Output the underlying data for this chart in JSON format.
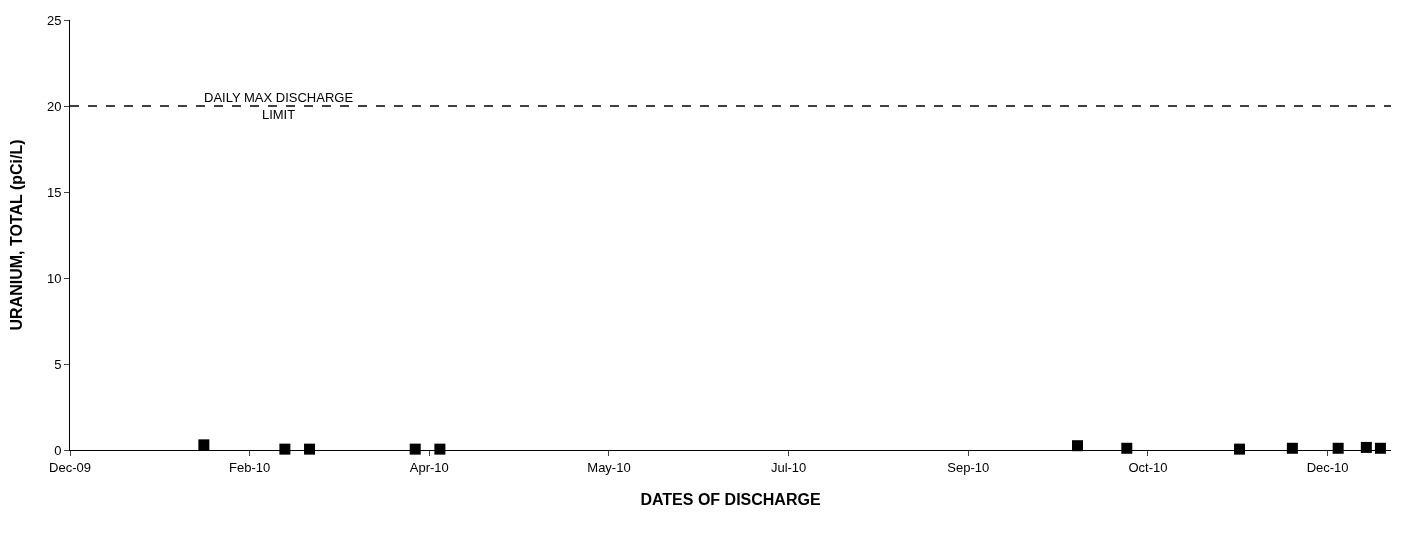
{
  "chart_data": {
    "type": "scatter",
    "xlabel": "DATES OF DISCHARGE",
    "ylabel": "URANIUM, TOTAL (pCi/L)",
    "x": [
      "2010-02-01",
      "2010-02-24",
      "2010-03-03",
      "2010-04-02",
      "2010-04-09",
      "2010-10-07",
      "2010-10-21",
      "2010-11-22",
      "2010-12-07",
      "2010-12-20",
      "2010-12-28",
      "2011-01-01"
    ],
    "series": [
      {
        "color": "#000000",
        "values": [
          0.3,
          0.05,
          0.05,
          0.05,
          0.05,
          0.25,
          0.1,
          0.05,
          0.1,
          0.1,
          0.15,
          0.1
        ]
      }
    ],
    "marker": "square",
    "xlim": [
      "2009-12-25",
      "2011-01-04"
    ],
    "xticks": [
      {
        "value": "2009-12-25",
        "label": "Dec-09"
      },
      {
        "value": "2010-02-14",
        "label": "Feb-10"
      },
      {
        "value": "2010-04-06",
        "label": "Apr-10"
      },
      {
        "value": "2010-05-27",
        "label": "May-10"
      },
      {
        "value": "2010-07-17",
        "label": "Jul-10"
      },
      {
        "value": "2010-09-06",
        "label": "Sep-10"
      },
      {
        "value": "2010-10-27",
        "label": "Oct-10"
      },
      {
        "value": "2010-12-17",
        "label": "Dec-10"
      }
    ],
    "ylim": [
      0,
      25
    ],
    "yticks": [
      0,
      5,
      10,
      15,
      20,
      25
    ],
    "ref_lines": [
      {
        "axis": "y",
        "value": 20,
        "label": "DAILY MAX DISCHARGE\nLIMIT",
        "color": "#000000",
        "line_style": "dashed"
      }
    ]
  }
}
